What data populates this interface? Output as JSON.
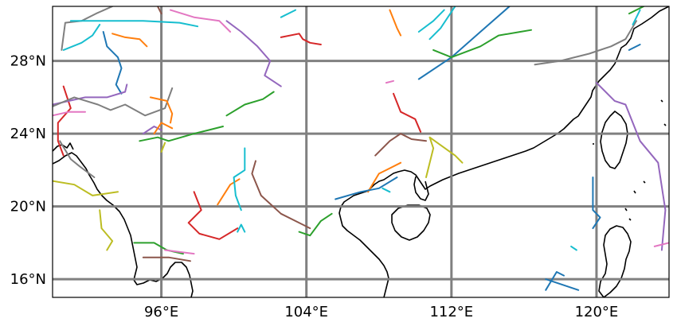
{
  "map": {
    "projection": "PlateCarree",
    "extent": {
      "lon_min": 90.0,
      "lon_max": 124.0,
      "lat_min": 15.0,
      "lat_max": 31.0
    },
    "gridlines": {
      "color": "#808080",
      "lons": [
        96,
        104,
        112,
        120
      ],
      "lats": [
        16,
        20,
        24,
        28
      ]
    },
    "x_tick_labels": [
      {
        "lon": 96,
        "text": "96°E"
      },
      {
        "lon": 104,
        "text": "104°E"
      },
      {
        "lon": 112,
        "text": "112°E"
      },
      {
        "lon": 120,
        "text": "120°E"
      }
    ],
    "y_tick_labels": [
      {
        "lat": 16,
        "text": "16°N"
      },
      {
        "lat": 20,
        "text": "20°N"
      },
      {
        "lat": 24,
        "text": "24°N"
      },
      {
        "lat": 28,
        "text": "28°N"
      }
    ],
    "coastline_color": "#000000"
  },
  "colors": {
    "blue": "#1f77b4",
    "orange": "#ff7f0e",
    "green": "#2ca02c",
    "red": "#d62728",
    "purple": "#9467bd",
    "brown": "#8c564b",
    "pink": "#e377c2",
    "gray": "#7f7f7f",
    "olive": "#bcbd22",
    "cyan": "#17becf"
  },
  "chart_data": {
    "type": "map",
    "tracks": [
      {
        "color": "gray",
        "points": [
          [
            90.5,
            28.6
          ],
          [
            90.7,
            30.1
          ],
          [
            91.6,
            30.2
          ],
          [
            92.4,
            30.6
          ],
          [
            93.3,
            31.0
          ]
        ]
      },
      {
        "color": "cyan",
        "points": [
          [
            91.0,
            30.2
          ],
          [
            93.0,
            30.2
          ],
          [
            95.0,
            30.2
          ],
          [
            97.0,
            30.1
          ],
          [
            98.0,
            29.9
          ]
        ]
      },
      {
        "color": "cyan",
        "points": [
          [
            90.6,
            28.6
          ],
          [
            91.6,
            29.0
          ],
          [
            92.2,
            29.4
          ],
          [
            92.6,
            30.0
          ]
        ]
      },
      {
        "color": "blue",
        "points": [
          [
            92.8,
            29.6
          ],
          [
            93.0,
            28.8
          ],
          [
            93.6,
            28.2
          ],
          [
            93.8,
            27.6
          ],
          [
            93.5,
            26.7
          ],
          [
            93.8,
            26.2
          ]
        ]
      },
      {
        "color": "orange",
        "points": [
          [
            93.3,
            29.5
          ],
          [
            94.0,
            29.3
          ],
          [
            94.8,
            29.2
          ],
          [
            95.2,
            28.8
          ]
        ]
      },
      {
        "color": "red",
        "points": [
          [
            90.6,
            26.6
          ],
          [
            91.0,
            25.4
          ],
          [
            90.3,
            24.6
          ],
          [
            90.3,
            23.6
          ],
          [
            90.6,
            22.8
          ]
        ]
      },
      {
        "color": "purple",
        "points": [
          [
            90.0,
            25.6
          ],
          [
            91.8,
            26.0
          ],
          [
            93.0,
            26.0
          ],
          [
            94.0,
            26.3
          ],
          [
            94.1,
            26.7
          ]
        ]
      },
      {
        "color": "gray",
        "points": [
          [
            90.0,
            25.5
          ],
          [
            91.2,
            26.0
          ],
          [
            92.5,
            25.6
          ],
          [
            93.2,
            25.3
          ],
          [
            94.0,
            25.6
          ],
          [
            95.1,
            25.0
          ],
          [
            96.2,
            25.4
          ],
          [
            96.6,
            26.5
          ]
        ]
      },
      {
        "color": "pink",
        "points": [
          [
            90.0,
            25.0
          ],
          [
            90.9,
            25.2
          ],
          [
            91.8,
            25.2
          ]
        ]
      },
      {
        "color": "gray",
        "points": [
          [
            90.4,
            23.6
          ],
          [
            91.0,
            22.6
          ],
          [
            91.5,
            22.2
          ],
          [
            92.3,
            21.6
          ]
        ]
      },
      {
        "color": "olive",
        "points": [
          [
            90.0,
            21.4
          ],
          [
            91.2,
            21.2
          ],
          [
            92.2,
            20.6
          ],
          [
            93.6,
            20.8
          ]
        ]
      },
      {
        "color": "olive",
        "points": [
          [
            92.6,
            19.8
          ],
          [
            92.7,
            18.8
          ],
          [
            93.3,
            18.1
          ],
          [
            93.0,
            17.6
          ]
        ]
      },
      {
        "color": "pink",
        "points": [
          [
            96.5,
            30.8
          ],
          [
            97.8,
            30.4
          ],
          [
            99.2,
            30.2
          ],
          [
            99.8,
            29.6
          ]
        ]
      },
      {
        "color": "brown",
        "points": [
          [
            95.8,
            31.0
          ],
          [
            96.0,
            30.6
          ]
        ]
      },
      {
        "color": "purple",
        "points": [
          [
            99.6,
            30.2
          ],
          [
            100.4,
            29.6
          ],
          [
            101.3,
            28.8
          ],
          [
            102.0,
            28.0
          ],
          [
            101.7,
            27.2
          ],
          [
            102.6,
            26.6
          ]
        ]
      },
      {
        "color": "orange",
        "points": [
          [
            95.4,
            26.0
          ],
          [
            96.3,
            25.8
          ],
          [
            96.6,
            25.1
          ],
          [
            96.5,
            24.6
          ]
        ]
      },
      {
        "color": "purple",
        "points": [
          [
            95.0,
            24.0
          ],
          [
            95.6,
            24.4
          ],
          [
            96.0,
            24.2
          ]
        ]
      },
      {
        "color": "orange",
        "points": [
          [
            95.6,
            24.0
          ],
          [
            96.0,
            24.6
          ],
          [
            96.6,
            24.3
          ]
        ]
      },
      {
        "color": "green",
        "points": [
          [
            94.8,
            23.6
          ],
          [
            95.8,
            23.8
          ],
          [
            96.4,
            23.6
          ],
          [
            97.8,
            24.0
          ],
          [
            98.6,
            24.2
          ],
          [
            99.4,
            24.4
          ]
        ]
      },
      {
        "color": "green",
        "points": [
          [
            99.6,
            25.0
          ],
          [
            100.6,
            25.6
          ],
          [
            101.6,
            25.9
          ],
          [
            102.2,
            26.3
          ]
        ]
      },
      {
        "color": "olive",
        "points": [
          [
            96.0,
            23.0
          ],
          [
            96.2,
            23.5
          ]
        ]
      },
      {
        "color": "red",
        "points": [
          [
            97.8,
            20.8
          ],
          [
            98.2,
            19.8
          ],
          [
            97.5,
            19.1
          ],
          [
            98.1,
            18.5
          ],
          [
            99.2,
            18.2
          ],
          [
            100.2,
            18.8
          ]
        ]
      },
      {
        "color": "orange",
        "points": [
          [
            99.1,
            20.1
          ],
          [
            99.8,
            21.2
          ],
          [
            100.3,
            21.5
          ]
        ]
      },
      {
        "color": "cyan",
        "points": [
          [
            100.6,
            23.2
          ],
          [
            100.6,
            22.0
          ],
          [
            100.0,
            21.6
          ],
          [
            100.1,
            20.6
          ],
          [
            100.4,
            19.8
          ]
        ]
      },
      {
        "color": "cyan",
        "points": [
          [
            100.2,
            18.6
          ],
          [
            100.4,
            19.0
          ],
          [
            100.6,
            18.6
          ]
        ]
      },
      {
        "color": "brown",
        "points": [
          [
            101.2,
            22.5
          ],
          [
            101.0,
            21.8
          ],
          [
            101.5,
            20.6
          ],
          [
            102.6,
            19.6
          ],
          [
            104.2,
            18.8
          ]
        ]
      },
      {
        "color": "green",
        "points": [
          [
            94.5,
            18.0
          ],
          [
            95.6,
            18.0
          ],
          [
            96.3,
            17.6
          ],
          [
            97.2,
            17.4
          ]
        ]
      },
      {
        "color": "brown",
        "points": [
          [
            95.0,
            17.2
          ],
          [
            96.4,
            17.2
          ],
          [
            97.6,
            17.0
          ]
        ]
      },
      {
        "color": "pink",
        "points": [
          [
            96.2,
            17.6
          ],
          [
            97.8,
            17.4
          ]
        ]
      },
      {
        "color": "cyan",
        "points": [
          [
            102.6,
            30.4
          ],
          [
            103.4,
            30.8
          ]
        ]
      },
      {
        "color": "red",
        "points": [
          [
            102.6,
            29.3
          ],
          [
            103.6,
            29.5
          ],
          [
            103.8,
            29.2
          ],
          [
            104.2,
            29.0
          ],
          [
            104.8,
            28.9
          ]
        ]
      },
      {
        "color": "green",
        "points": [
          [
            103.6,
            18.6
          ],
          [
            104.2,
            18.4
          ],
          [
            104.8,
            19.2
          ],
          [
            105.4,
            19.6
          ]
        ]
      },
      {
        "color": "orange",
        "points": [
          [
            108.6,
            30.8
          ],
          [
            109.0,
            29.8
          ],
          [
            109.2,
            29.4
          ]
        ]
      },
      {
        "color": "pink",
        "points": [
          [
            108.4,
            26.8
          ],
          [
            108.8,
            26.9
          ]
        ]
      },
      {
        "color": "red",
        "points": [
          [
            108.8,
            26.2
          ],
          [
            109.2,
            25.2
          ],
          [
            110.0,
            24.8
          ],
          [
            110.3,
            24.1
          ]
        ]
      },
      {
        "color": "brown",
        "points": [
          [
            107.8,
            22.8
          ],
          [
            108.6,
            23.6
          ],
          [
            109.2,
            24.0
          ],
          [
            109.8,
            23.7
          ],
          [
            110.6,
            23.6
          ]
        ]
      },
      {
        "color": "orange",
        "points": [
          [
            107.4,
            20.8
          ],
          [
            108.0,
            21.8
          ],
          [
            108.4,
            22.0
          ],
          [
            109.2,
            22.4
          ]
        ]
      },
      {
        "color": "blue",
        "points": [
          [
            105.6,
            20.4
          ],
          [
            107.0,
            20.8
          ],
          [
            108.0,
            21.0
          ],
          [
            109.0,
            21.6
          ]
        ]
      },
      {
        "color": "cyan",
        "points": [
          [
            108.2,
            21.0
          ],
          [
            108.6,
            20.8
          ]
        ]
      },
      {
        "color": "olive",
        "points": [
          [
            110.6,
            21.6
          ],
          [
            111.0,
            23.2
          ],
          [
            110.8,
            23.8
          ],
          [
            112.2,
            22.8
          ],
          [
            112.6,
            22.4
          ]
        ]
      },
      {
        "color": "cyan",
        "points": [
          [
            110.2,
            29.6
          ],
          [
            111.0,
            30.2
          ],
          [
            111.6,
            30.8
          ]
        ]
      },
      {
        "color": "cyan",
        "points": [
          [
            110.8,
            29.2
          ],
          [
            111.4,
            29.8
          ],
          [
            112.2,
            31.0
          ]
        ]
      },
      {
        "color": "blue",
        "points": [
          [
            110.2,
            27.0
          ],
          [
            112.0,
            28.2
          ],
          [
            113.6,
            29.6
          ],
          [
            115.2,
            31.0
          ]
        ]
      },
      {
        "color": "green",
        "points": [
          [
            111.0,
            28.6
          ],
          [
            112.0,
            28.2
          ],
          [
            113.6,
            28.8
          ],
          [
            114.6,
            29.4
          ],
          [
            115.8,
            29.6
          ],
          [
            116.4,
            29.7
          ]
        ]
      },
      {
        "color": "gray",
        "points": [
          [
            116.6,
            27.8
          ],
          [
            118.0,
            28.0
          ],
          [
            119.6,
            28.4
          ],
          [
            120.8,
            28.8
          ],
          [
            121.6,
            29.2
          ],
          [
            122.2,
            30.2
          ]
        ]
      },
      {
        "color": "purple",
        "points": [
          [
            120.0,
            26.8
          ],
          [
            121.0,
            25.8
          ],
          [
            121.6,
            25.6
          ],
          [
            122.4,
            23.6
          ],
          [
            123.4,
            22.4
          ],
          [
            123.8,
            19.8
          ],
          [
            123.6,
            17.6
          ]
        ]
      },
      {
        "color": "pink",
        "points": [
          [
            123.2,
            17.8
          ],
          [
            124.0,
            18.0
          ]
        ]
      },
      {
        "color": "green",
        "points": [
          [
            121.8,
            30.6
          ],
          [
            122.6,
            31.0
          ]
        ]
      },
      {
        "color": "cyan",
        "points": [
          [
            122.0,
            30.0
          ],
          [
            122.4,
            30.8
          ]
        ]
      },
      {
        "color": "blue",
        "points": [
          [
            121.8,
            28.6
          ],
          [
            122.4,
            28.9
          ]
        ]
      },
      {
        "color": "blue",
        "points": [
          [
            119.8,
            21.6
          ],
          [
            119.8,
            19.8
          ],
          [
            120.2,
            19.4
          ],
          [
            119.8,
            18.8
          ]
        ]
      },
      {
        "color": "cyan",
        "points": [
          [
            118.6,
            17.8
          ],
          [
            118.9,
            17.6
          ]
        ]
      },
      {
        "color": "blue",
        "points": [
          [
            117.2,
            15.4
          ],
          [
            117.8,
            16.4
          ],
          [
            118.2,
            16.2
          ]
        ]
      },
      {
        "color": "blue",
        "points": [
          [
            117.2,
            16.0
          ],
          [
            119.0,
            15.4
          ]
        ]
      }
    ]
  }
}
